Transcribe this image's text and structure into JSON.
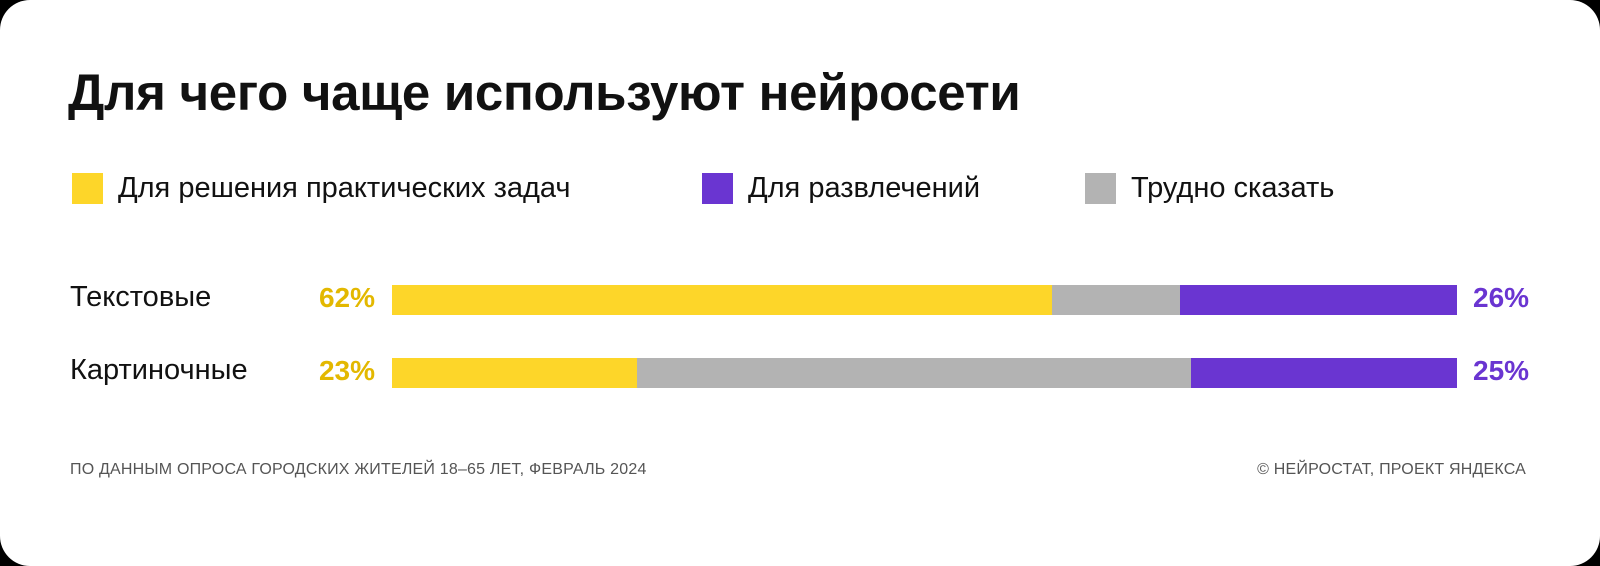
{
  "title": "Для чего чаще используют нейросети",
  "legend": [
    {
      "label": "Для решения практических задач",
      "color": "#fdd629"
    },
    {
      "label": "Для развлечений",
      "color": "#6a35d1"
    },
    {
      "label": "Трудно сказать",
      "color": "#b3b3b3"
    }
  ],
  "chart_data": {
    "type": "bar",
    "orientation": "horizontal",
    "stacked": true,
    "categories": [
      "Текстовые",
      "Картиночные"
    ],
    "series": [
      {
        "name": "Для решения практических задач",
        "values": [
          62,
          23
        ],
        "color": "#fdd629"
      },
      {
        "name": "Трудно сказать",
        "values": [
          12,
          52
        ],
        "color": "#b3b3b3"
      },
      {
        "name": "Для развлечений",
        "values": [
          26,
          25
        ],
        "color": "#6a35d1"
      }
    ],
    "labels_left": [
      "62%",
      "23%"
    ],
    "labels_right": [
      "26%",
      "25%"
    ],
    "xlim": [
      0,
      100
    ],
    "legend_position": "top",
    "grid": false
  },
  "footer": {
    "source": "ПО ДАННЫМ ОПРОСА ГОРОДСКИХ ЖИТЕЛЕЙ 18–65 ЛЕТ, ФЕВРАЛЬ 2024",
    "credit": "© НЕЙРОСТАТ, ПРОЕКТ ЯНДЕКСА"
  }
}
